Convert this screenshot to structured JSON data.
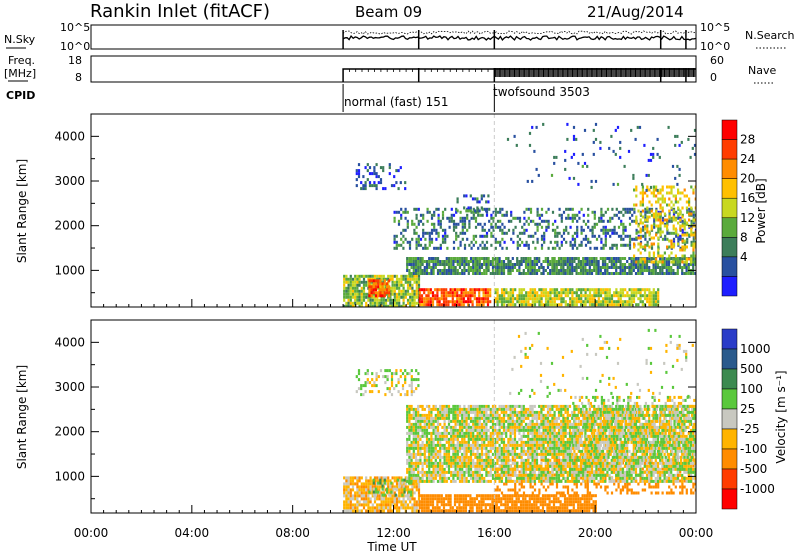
{
  "header": {
    "station": "Rankin Inlet (fitACF)",
    "beam": "Beam 09",
    "date": "21/Aug/2014"
  },
  "params": {
    "nsky_label": "N.Sky",
    "nsearch_label": "N.Search",
    "nsky_ticks": [
      "10^5",
      "10^0"
    ],
    "nsearch_ticks": [
      "10^5",
      "10^0"
    ],
    "freq_label": [
      "Freq.",
      "[MHz]"
    ],
    "freq_ticks": [
      "18",
      "8"
    ],
    "nave_label": "Nave",
    "nave_ticks": [
      "60",
      "0"
    ],
    "cpid_label": "CPID",
    "modes": [
      {
        "name": "normal (fast) 151",
        "start": 10.0,
        "end": 16.0
      },
      {
        "name": "twofsound 3503",
        "start": 16.0,
        "end": 24.0
      }
    ]
  },
  "colorbars": {
    "power": {
      "label": "Power [dB]",
      "ticks": [
        "28",
        "24",
        "20",
        "16",
        "12",
        "8",
        "4"
      ],
      "colors": [
        "#ff0000",
        "#ff3c00",
        "#ff8c00",
        "#ffc000",
        "#c8d820",
        "#5aaa3c",
        "#3c7d5a",
        "#2850a0",
        "#1e1eff"
      ]
    },
    "velocity": {
      "label": "Velocity [m s⁻¹]",
      "ticks": [
        "1000",
        "500",
        "100",
        "25",
        "-25",
        "-100",
        "-500",
        "-1000"
      ],
      "colors": [
        "#2a3cc8",
        "#2a5a8c",
        "#3c8a50",
        "#5ac83c",
        "#c8c8c0",
        "#ffb400",
        "#ff8c00",
        "#ff3c00",
        "#ff0000"
      ]
    }
  },
  "axes": {
    "ylabel": "Slant Range [km]",
    "yticks": [
      "4000",
      "3000",
      "2000",
      "1000"
    ],
    "xticks": [
      "00:00",
      "04:00",
      "08:00",
      "12:00",
      "16:00",
      "20:00",
      "00:00"
    ],
    "xlabel": "Time UT"
  },
  "chart_data": [
    {
      "type": "heatmap",
      "title": "",
      "xlabel": "Time UT",
      "ylabel": "Slant Range [km]",
      "xlim": [
        0,
        24
      ],
      "ylim": [
        180,
        4500
      ],
      "color_quantity": "Power [dB]",
      "regions": [
        {
          "t0": 10.0,
          "t1": 13.0,
          "r0": 200,
          "r1": 900,
          "value": 14,
          "kind": "band"
        },
        {
          "t0": 11.0,
          "t1": 11.8,
          "r0": 400,
          "r1": 800,
          "value": 26,
          "kind": "band"
        },
        {
          "t0": 13.0,
          "t1": 15.8,
          "r0": 200,
          "r1": 600,
          "value": 26,
          "kind": "band"
        },
        {
          "t0": 16.0,
          "t1": 22.5,
          "r0": 200,
          "r1": 600,
          "value": 16,
          "kind": "band"
        },
        {
          "t0": 12.5,
          "t1": 24.0,
          "r0": 900,
          "r1": 1300,
          "value": 9,
          "kind": "band"
        },
        {
          "t0": 12.0,
          "t1": 24.0,
          "r0": 1500,
          "r1": 2400,
          "value": 8,
          "kind": "scatter"
        },
        {
          "t0": 21.5,
          "t1": 24.0,
          "r0": 1200,
          "r1": 2900,
          "value": 18,
          "kind": "scatter"
        },
        {
          "t0": 10.5,
          "t1": 12.5,
          "r0": 2800,
          "r1": 3400,
          "value": 5,
          "kind": "scatter"
        },
        {
          "t0": 14.5,
          "t1": 15.8,
          "r0": 2300,
          "r1": 2700,
          "value": 7,
          "kind": "scatter"
        },
        {
          "t0": 16.5,
          "t1": 24.0,
          "r0": 2800,
          "r1": 4300,
          "value": 6,
          "kind": "sparse"
        }
      ]
    },
    {
      "type": "heatmap",
      "title": "",
      "xlabel": "Time UT",
      "ylabel": "Slant Range [km]",
      "xlim": [
        0,
        24
      ],
      "ylim": [
        180,
        4500
      ],
      "color_quantity": "Velocity [m s^-1]",
      "regions": [
        {
          "t0": 10.0,
          "t1": 13.0,
          "r0": 200,
          "r1": 1000,
          "value": -60,
          "kind": "band"
        },
        {
          "t0": 11.0,
          "t1": 12.8,
          "r0": 600,
          "r1": 950,
          "value": 60,
          "kind": "scatter"
        },
        {
          "t0": 13.0,
          "t1": 20.0,
          "r0": 200,
          "r1": 600,
          "value": -300,
          "kind": "band"
        },
        {
          "t0": 16.0,
          "t1": 24.0,
          "r0": 600,
          "r1": 1400,
          "value": -200,
          "kind": "scatter"
        },
        {
          "t0": 12.5,
          "t1": 24.0,
          "r0": 900,
          "r1": 2600,
          "value": 0,
          "kind": "band"
        },
        {
          "t0": 10.5,
          "t1": 13.0,
          "r0": 2800,
          "r1": 3400,
          "value": 0,
          "kind": "scatter"
        },
        {
          "t0": 19.0,
          "t1": 24.0,
          "r0": 1300,
          "r1": 2800,
          "value": 0,
          "kind": "scatter"
        },
        {
          "t0": 16.5,
          "t1": 24.0,
          "r0": 2800,
          "r1": 4300,
          "value": 0,
          "kind": "sparse"
        }
      ]
    }
  ]
}
